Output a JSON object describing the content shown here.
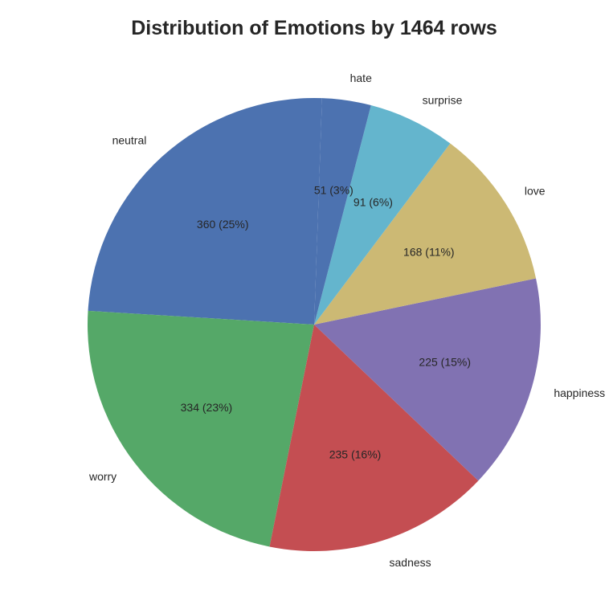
{
  "chart_data": {
    "type": "pie",
    "title": "Distribution of Emotions by 1464 rows",
    "categories": [
      "neutral",
      "worry",
      "sadness",
      "happiness",
      "love",
      "surprise",
      "hate"
    ],
    "values": [
      360,
      334,
      235,
      225,
      168,
      91,
      51
    ],
    "slice_labels": [
      "360 (25%)",
      "334 (23%)",
      "235 (16%)",
      "225 (15%)",
      "168 (11%)",
      "91 (6%)",
      "51 (3%)"
    ],
    "colors": [
      "#4c72b0",
      "#55a868",
      "#c44e52",
      "#8172b2",
      "#ccb974",
      "#64b5cd",
      "#4c72b0"
    ],
    "start_angle_deg": 88,
    "direction": "counterclockwise",
    "legend": "none"
  }
}
